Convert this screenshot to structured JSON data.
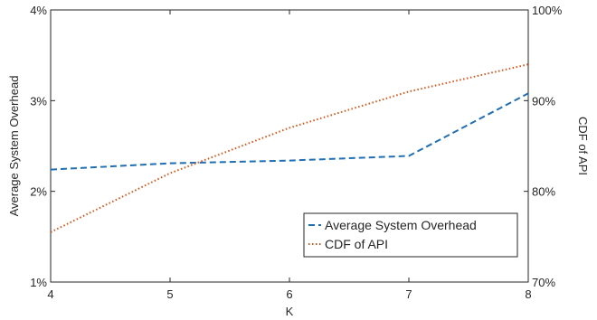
{
  "chart_data": {
    "type": "line",
    "title": "",
    "xlabel": "K",
    "ylabel_left": "Average System Overhead",
    "ylabel_right": "CDF of API",
    "x": [
      4,
      5,
      6,
      7,
      8
    ],
    "xlim": [
      4,
      8
    ],
    "x_ticks": [
      "4",
      "5",
      "6",
      "7",
      "8"
    ],
    "ylim_left": [
      1,
      4
    ],
    "y_ticks_left": [
      "1%",
      "2%",
      "3%",
      "4%"
    ],
    "ylim_right": [
      70,
      100
    ],
    "y_ticks_right": [
      "70%",
      "80%",
      "90%",
      "100%"
    ],
    "grid": false,
    "legend_position": "bottom-right",
    "series": [
      {
        "name": "Average System Overhead",
        "axis": "left",
        "unit": "%",
        "style": "dashed",
        "color": "#1f6fb5",
        "values": [
          2.24,
          2.31,
          2.34,
          2.39,
          3.08
        ]
      },
      {
        "name": "CDF of API",
        "axis": "right",
        "unit": "%",
        "style": "dotted",
        "color": "#d9541a",
        "values": [
          75.5,
          82.0,
          87.0,
          91.0,
          94.0
        ]
      }
    ]
  }
}
